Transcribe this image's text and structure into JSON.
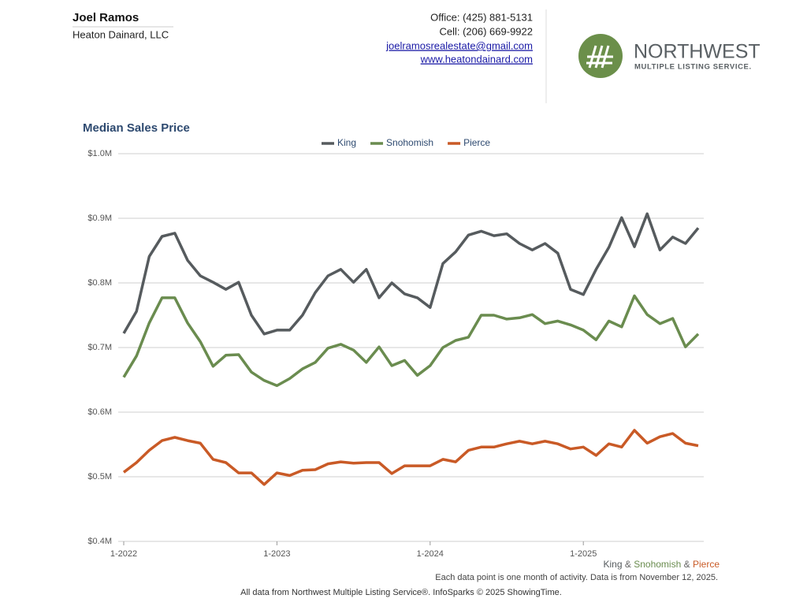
{
  "header": {
    "name": "Joel Ramos",
    "company": "Heaton Dainard, LLC",
    "office": "Office: (425) 881-5131",
    "cell": "Cell: (206) 669-9922",
    "email": "joelramosrealestate@gmail.com",
    "website": "www.heatondainard.com"
  },
  "logo": {
    "title": "NORTHWEST",
    "subtitle": "MULTIPLE LISTING SERVICE."
  },
  "chart_data": {
    "type": "line",
    "title": "Median Sales Price",
    "categories": [
      "1-2022",
      null,
      null,
      null,
      null,
      null,
      null,
      null,
      null,
      null,
      null,
      null,
      "1-2023",
      null,
      null,
      null,
      null,
      null,
      null,
      null,
      null,
      null,
      null,
      null,
      "1-2024",
      null,
      null,
      null,
      null,
      null,
      null,
      null,
      null,
      null,
      null,
      null,
      "1-2025",
      null,
      null,
      null,
      null,
      null,
      null,
      null,
      null,
      null
    ],
    "series": [
      {
        "name": "King",
        "color": "#565b5e",
        "values": [
          722000,
          756000,
          841000,
          872000,
          877000,
          835000,
          811000,
          801000,
          790000,
          801000,
          750000,
          721000,
          727000,
          727000,
          750000,
          785000,
          811000,
          821000,
          801000,
          821000,
          777000,
          800000,
          783000,
          777000,
          762000,
          830000,
          848000,
          874000,
          880000,
          873000,
          876000,
          861000,
          851000,
          861000,
          846000,
          790000,
          782000,
          821000,
          855000,
          901000,
          856000,
          907000,
          851000,
          871000,
          861000,
          885000
        ]
      },
      {
        "name": "Snohomish",
        "color": "#6a8c4f",
        "values": [
          654000,
          687000,
          738000,
          777000,
          777000,
          738000,
          709000,
          671000,
          688000,
          689000,
          662000,
          649000,
          641000,
          652000,
          667000,
          677000,
          699000,
          705000,
          696000,
          677000,
          701000,
          672000,
          680000,
          657000,
          672000,
          700000,
          711000,
          716000,
          750000,
          750000,
          744000,
          746000,
          751000,
          737000,
          741000,
          735000,
          727000,
          712000,
          741000,
          732000,
          780000,
          751000,
          737000,
          745000,
          701000,
          721000
        ]
      },
      {
        "name": "Pierce",
        "color": "#c95a26",
        "values": [
          507000,
          522000,
          541000,
          556000,
          561000,
          556000,
          552000,
          527000,
          522000,
          506000,
          506000,
          488000,
          506000,
          502000,
          510000,
          511000,
          520000,
          523000,
          521000,
          522000,
          522000,
          505000,
          517000,
          517000,
          517000,
          527000,
          523000,
          541000,
          546000,
          546000,
          551000,
          555000,
          551000,
          555000,
          551000,
          543000,
          546000,
          533000,
          551000,
          546000,
          572000,
          552000,
          562000,
          567000,
          552000,
          548000
        ]
      }
    ],
    "ylim": [
      400000,
      1000000
    ],
    "yticks": [
      {
        "value": 400000,
        "label": "$0.4M"
      },
      {
        "value": 500000,
        "label": "$0.5M"
      },
      {
        "value": 600000,
        "label": "$0.6M"
      },
      {
        "value": 700000,
        "label": "$0.7M"
      },
      {
        "value": 800000,
        "label": "$0.8M"
      },
      {
        "value": 900000,
        "label": "$0.9M"
      },
      {
        "value": 1000000,
        "label": "$1.0M"
      }
    ],
    "grid": true,
    "legend": "top",
    "series_caption": [
      "King",
      "&",
      "Snohomish",
      "&",
      "Pierce"
    ]
  },
  "footer": {
    "note": "Each data point is one month of activity. Data is from November 12, 2025.",
    "source": "All data from Northwest Multiple Listing Service®. InfoSparks © 2025 ShowingTime."
  }
}
